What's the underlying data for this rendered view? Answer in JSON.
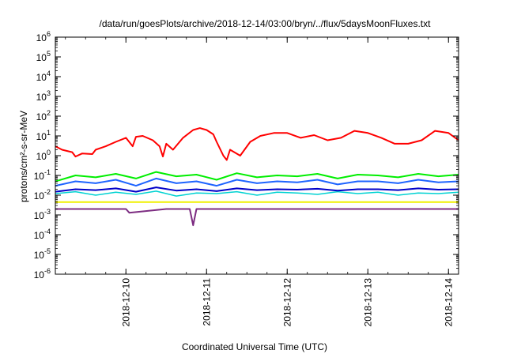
{
  "chart_data": {
    "type": "line",
    "title": "/data/run/goesPlots/archive/2018-12-14/03:00/bryn/../flux/5daysMoonFluxes.txt",
    "xlabel": "Coordinated Universal Time (UTC)",
    "ylabel": "protons/cm²-s-sr-MeV",
    "x_scale": "time",
    "xlim": [
      "2018-12-09 03:00",
      "2018-12-14 03:00"
    ],
    "y_scale": "log",
    "ylim": [
      1e-06,
      1000000.0
    ],
    "grid": false,
    "legend": "none",
    "x_ticks": [
      {
        "value": "2018-12-10 00:00",
        "label": "2018-12-10"
      },
      {
        "value": "2018-12-11 00:00",
        "label": "2018-12-11"
      },
      {
        "value": "2018-12-12 00:00",
        "label": "2018-12-12"
      },
      {
        "value": "2018-12-13 00:00",
        "label": "2018-12-13"
      },
      {
        "value": "2018-12-14 00:00",
        "label": "2018-12-14"
      }
    ],
    "y_ticks": [
      {
        "exp": -6,
        "base": "10",
        "sup": "-6"
      },
      {
        "exp": -5,
        "base": "10",
        "sup": "-5"
      },
      {
        "exp": -4,
        "base": "10",
        "sup": "-4"
      },
      {
        "exp": -3,
        "base": "10",
        "sup": "-3"
      },
      {
        "exp": -2,
        "base": "10",
        "sup": "-2"
      },
      {
        "exp": -1,
        "base": "10",
        "sup": "-1"
      },
      {
        "exp": 0,
        "base": "10",
        "sup": "0"
      },
      {
        "exp": 1,
        "base": "10",
        "sup": "1"
      },
      {
        "exp": 2,
        "base": "10",
        "sup": "2"
      },
      {
        "exp": 3,
        "base": "10",
        "sup": "3"
      },
      {
        "exp": 4,
        "base": "10",
        "sup": "4"
      },
      {
        "exp": 5,
        "base": "10",
        "sup": "5"
      },
      {
        "exp": 6,
        "base": "10",
        "sup": "6"
      }
    ],
    "series": [
      {
        "color": "#ff0000",
        "width": 2,
        "x": [
          "2018-12-09 03:00",
          "2018-12-09 05:00",
          "2018-12-09 08:00",
          "2018-12-09 09:00",
          "2018-12-09 11:00",
          "2018-12-09 14:00",
          "2018-12-09 15:00",
          "2018-12-09 18:00",
          "2018-12-09 21:00",
          "2018-12-10 00:00",
          "2018-12-10 02:00",
          "2018-12-10 03:00",
          "2018-12-10 05:00",
          "2018-12-10 08:00",
          "2018-12-10 10:00",
          "2018-12-10 11:00",
          "2018-12-10 12:00",
          "2018-12-10 14:00",
          "2018-12-10 17:00",
          "2018-12-10 20:00",
          "2018-12-10 22:00",
          "2018-12-11 00:00",
          "2018-12-11 02:00",
          "2018-12-11 03:00",
          "2018-12-11 05:00",
          "2018-12-11 06:00",
          "2018-12-11 07:00",
          "2018-12-11 10:00",
          "2018-12-11 13:00",
          "2018-12-11 16:00",
          "2018-12-11 20:00",
          "2018-12-12 00:00",
          "2018-12-12 04:00",
          "2018-12-12 08:00",
          "2018-12-12 12:00",
          "2018-12-12 16:00",
          "2018-12-12 20:00",
          "2018-12-13 00:00",
          "2018-12-13 04:00",
          "2018-12-13 08:00",
          "2018-12-13 12:00",
          "2018-12-13 16:00",
          "2018-12-13 20:00",
          "2018-12-14 00:00",
          "2018-12-14 03:00"
        ],
        "y": [
          3,
          2,
          1.5,
          0.9,
          1.3,
          1.2,
          2,
          3,
          5,
          8,
          3,
          9,
          10,
          6,
          3,
          0.9,
          4,
          2,
          8,
          20,
          25,
          20,
          12,
          5,
          1,
          0.6,
          2,
          1,
          5,
          10,
          14,
          14,
          8,
          11,
          6,
          8,
          18,
          14,
          8,
          4,
          4,
          6,
          18,
          14,
          6
        ]
      },
      {
        "color": "#00ee00",
        "width": 2,
        "x": [
          "2018-12-09 03:00",
          "2018-12-09 09:00",
          "2018-12-09 15:00",
          "2018-12-09 21:00",
          "2018-12-10 03:00",
          "2018-12-10 09:00",
          "2018-12-10 15:00",
          "2018-12-10 21:00",
          "2018-12-11 03:00",
          "2018-12-11 09:00",
          "2018-12-11 15:00",
          "2018-12-11 21:00",
          "2018-12-12 03:00",
          "2018-12-12 09:00",
          "2018-12-12 15:00",
          "2018-12-12 21:00",
          "2018-12-13 03:00",
          "2018-12-13 09:00",
          "2018-12-13 15:00",
          "2018-12-13 21:00",
          "2018-12-14 03:00"
        ],
        "y": [
          0.05,
          0.1,
          0.08,
          0.12,
          0.07,
          0.15,
          0.09,
          0.11,
          0.06,
          0.13,
          0.08,
          0.1,
          0.09,
          0.12,
          0.07,
          0.11,
          0.1,
          0.08,
          0.12,
          0.09,
          0.11
        ]
      },
      {
        "color": "#00d2d2",
        "width": 1.5,
        "x": [
          "2018-12-09 03:00",
          "2018-12-09 09:00",
          "2018-12-09 15:00",
          "2018-12-09 21:00",
          "2018-12-10 03:00",
          "2018-12-10 09:00",
          "2018-12-10 15:00",
          "2018-12-10 21:00",
          "2018-12-11 03:00",
          "2018-12-11 09:00",
          "2018-12-11 15:00",
          "2018-12-11 21:00",
          "2018-12-12 03:00",
          "2018-12-12 09:00",
          "2018-12-12 15:00",
          "2018-12-12 21:00",
          "2018-12-13 03:00",
          "2018-12-13 09:00",
          "2018-12-13 15:00",
          "2018-12-13 21:00",
          "2018-12-14 03:00"
        ],
        "y": [
          0.012,
          0.015,
          0.01,
          0.014,
          0.011,
          0.016,
          0.009,
          0.013,
          0.012,
          0.015,
          0.01,
          0.014,
          0.013,
          0.011,
          0.015,
          0.012,
          0.014,
          0.01,
          0.013,
          0.012,
          0.014
        ]
      },
      {
        "color": "#1e64ff",
        "width": 2,
        "x": [
          "2018-12-09 03:00",
          "2018-12-09 09:00",
          "2018-12-09 15:00",
          "2018-12-09 21:00",
          "2018-12-10 03:00",
          "2018-12-10 09:00",
          "2018-12-10 15:00",
          "2018-12-10 21:00",
          "2018-12-11 03:00",
          "2018-12-11 09:00",
          "2018-12-11 15:00",
          "2018-12-11 21:00",
          "2018-12-12 03:00",
          "2018-12-12 09:00",
          "2018-12-12 15:00",
          "2018-12-12 21:00",
          "2018-12-13 03:00",
          "2018-12-13 09:00",
          "2018-12-13 15:00",
          "2018-12-13 21:00",
          "2018-12-14 03:00"
        ],
        "y": [
          0.03,
          0.05,
          0.04,
          0.06,
          0.03,
          0.07,
          0.04,
          0.05,
          0.03,
          0.06,
          0.04,
          0.05,
          0.045,
          0.06,
          0.035,
          0.05,
          0.05,
          0.04,
          0.06,
          0.045,
          0.05
        ]
      },
      {
        "color": "#0000c8",
        "width": 2,
        "x": [
          "2018-12-09 03:00",
          "2018-12-09 09:00",
          "2018-12-09 15:00",
          "2018-12-09 21:00",
          "2018-12-10 03:00",
          "2018-12-10 09:00",
          "2018-12-10 15:00",
          "2018-12-10 21:00",
          "2018-12-11 03:00",
          "2018-12-11 09:00",
          "2018-12-11 15:00",
          "2018-12-11 21:00",
          "2018-12-12 03:00",
          "2018-12-12 09:00",
          "2018-12-12 15:00",
          "2018-12-12 21:00",
          "2018-12-13 03:00",
          "2018-12-13 09:00",
          "2018-12-13 15:00",
          "2018-12-13 21:00",
          "2018-12-14 03:00"
        ],
        "y": [
          0.015,
          0.02,
          0.018,
          0.022,
          0.015,
          0.025,
          0.017,
          0.02,
          0.016,
          0.022,
          0.018,
          0.02,
          0.019,
          0.021,
          0.017,
          0.02,
          0.02,
          0.018,
          0.022,
          0.019,
          0.02
        ]
      },
      {
        "color": "#f0f000",
        "width": 2,
        "x": [
          "2018-12-09 03:00",
          "2018-12-10 03:00",
          "2018-12-11 03:00",
          "2018-12-12 03:00",
          "2018-12-13 03:00",
          "2018-12-14 03:00"
        ],
        "y": [
          0.0045,
          0.0045,
          0.0045,
          0.0045,
          0.0045,
          0.0045
        ]
      },
      {
        "color": "#7d2d82",
        "width": 2,
        "x": [
          "2018-12-09 03:00",
          "2018-12-09 21:00",
          "2018-12-10 00:00",
          "2018-12-10 01:00",
          "2018-12-10 12:00",
          "2018-12-10 19:00",
          "2018-12-10 20:00",
          "2018-12-10 21:00",
          "2018-12-11 12:00",
          "2018-12-12 12:00",
          "2018-12-13 12:00",
          "2018-12-14 03:00"
        ],
        "y": [
          0.002,
          0.002,
          0.002,
          0.0013,
          0.002,
          0.002,
          0.0003,
          0.002,
          0.002,
          0.002,
          0.002,
          0.002
        ]
      }
    ]
  }
}
